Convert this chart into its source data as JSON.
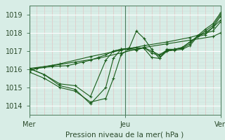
{
  "xlabel": "Pression niveau de la mer( hPa )",
  "ylim": [
    1013.5,
    1019.5
  ],
  "yticks": [
    1014,
    1015,
    1016,
    1017,
    1018,
    1019
  ],
  "xtick_labels": [
    "Mer",
    "Jeu",
    "Ven"
  ],
  "xtick_positions": [
    0.0,
    0.5,
    1.0
  ],
  "bg_color": "#d8ede6",
  "line_color": "#1a5c1a",
  "vline_color": "#4a7a5a",
  "lines": [
    [
      0.0,
      1015.9,
      0.04,
      1016.05,
      0.08,
      1016.1,
      0.12,
      1016.15,
      0.16,
      1016.18,
      0.2,
      1016.2,
      0.24,
      1016.3,
      0.28,
      1016.4,
      0.32,
      1016.5,
      0.36,
      1016.65,
      0.4,
      1016.8,
      0.44,
      1017.0,
      0.48,
      1017.1,
      0.52,
      1017.15,
      0.56,
      1017.1,
      0.6,
      1017.2,
      0.64,
      1017.0,
      0.68,
      1016.8,
      0.72,
      1017.05,
      0.76,
      1017.1,
      0.8,
      1017.2,
      0.84,
      1017.5,
      0.88,
      1017.8,
      0.92,
      1018.0,
      0.96,
      1018.3,
      1.0,
      1018.9
    ],
    [
      0.0,
      1015.85,
      0.08,
      1015.5,
      0.16,
      1015.0,
      0.24,
      1014.8,
      0.32,
      1014.2,
      0.4,
      1014.4,
      0.44,
      1015.5,
      0.48,
      1016.8,
      0.52,
      1017.1,
      0.56,
      1017.05,
      0.6,
      1017.2,
      0.64,
      1016.9,
      0.68,
      1016.75,
      0.72,
      1017.0,
      0.76,
      1017.05,
      0.8,
      1017.1,
      0.84,
      1017.3,
      0.88,
      1017.8,
      0.92,
      1018.1,
      0.96,
      1018.4,
      1.0,
      1019.0
    ],
    [
      0.0,
      1016.05,
      0.08,
      1015.7,
      0.16,
      1015.1,
      0.24,
      1014.9,
      0.32,
      1014.1,
      0.4,
      1015.0,
      0.44,
      1016.6,
      0.48,
      1017.1,
      0.52,
      1017.15,
      0.56,
      1017.2,
      0.6,
      1017.15,
      0.64,
      1016.65,
      0.68,
      1016.6,
      0.72,
      1017.1,
      0.76,
      1017.1,
      0.8,
      1017.15,
      0.84,
      1017.4,
      0.88,
      1017.85,
      0.92,
      1018.2,
      0.96,
      1018.5,
      1.0,
      1019.1
    ],
    [
      0.0,
      1016.05,
      0.08,
      1015.7,
      0.16,
      1015.2,
      0.24,
      1015.1,
      0.32,
      1014.5,
      0.4,
      1016.5,
      0.44,
      1017.0,
      0.48,
      1017.1,
      0.52,
      1017.1,
      0.56,
      1018.1,
      0.6,
      1017.7,
      0.64,
      1017.1,
      0.68,
      1016.6,
      0.72,
      1017.0,
      0.76,
      1017.1,
      0.8,
      1017.2,
      0.84,
      1017.5,
      0.88,
      1017.8,
      0.92,
      1017.9,
      0.96,
      1018.3,
      1.0,
      1018.7
    ],
    [
      0.0,
      1016.05,
      0.12,
      1016.2,
      0.24,
      1016.4,
      0.36,
      1016.6,
      0.48,
      1016.9,
      0.6,
      1017.2,
      0.72,
      1017.4,
      0.84,
      1017.6,
      0.96,
      1017.8,
      1.0,
      1018.0
    ],
    [
      0.0,
      1016.0,
      0.16,
      1016.3,
      0.32,
      1016.7,
      0.48,
      1017.05,
      0.6,
      1017.3,
      0.72,
      1017.5,
      0.84,
      1017.75,
      0.96,
      1018.1,
      1.0,
      1018.6
    ]
  ]
}
